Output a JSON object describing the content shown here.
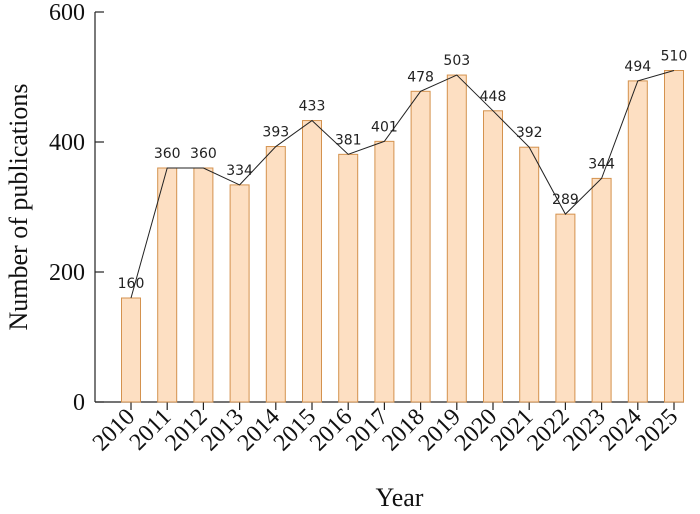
{
  "chart_data": {
    "type": "bar",
    "categories": [
      "2010",
      "2011",
      "2012",
      "2013",
      "2014",
      "2015",
      "2016",
      "2017",
      "2018",
      "2019",
      "2020",
      "2021",
      "2022",
      "2023",
      "2024",
      "2025"
    ],
    "values": [
      160,
      360,
      360,
      334,
      393,
      433,
      381,
      401,
      478,
      503,
      448,
      392,
      289,
      344,
      494,
      510
    ],
    "data_labels": [
      "160",
      "360",
      "360",
      "334",
      "393",
      "433",
      "381",
      "401",
      "478",
      "503",
      "448",
      "392",
      "289",
      "344",
      "494",
      "510"
    ],
    "overlay_line": true,
    "xlabel": "Year",
    "ylabel": "Number of publications",
    "ylim": [
      0,
      600
    ],
    "yticks": [
      "0",
      "200",
      "400",
      "600"
    ],
    "grid": false,
    "legend": "none",
    "bar_fill": "#FDDFC2",
    "bar_stroke": "#D4924E",
    "line_color": "#222222"
  }
}
